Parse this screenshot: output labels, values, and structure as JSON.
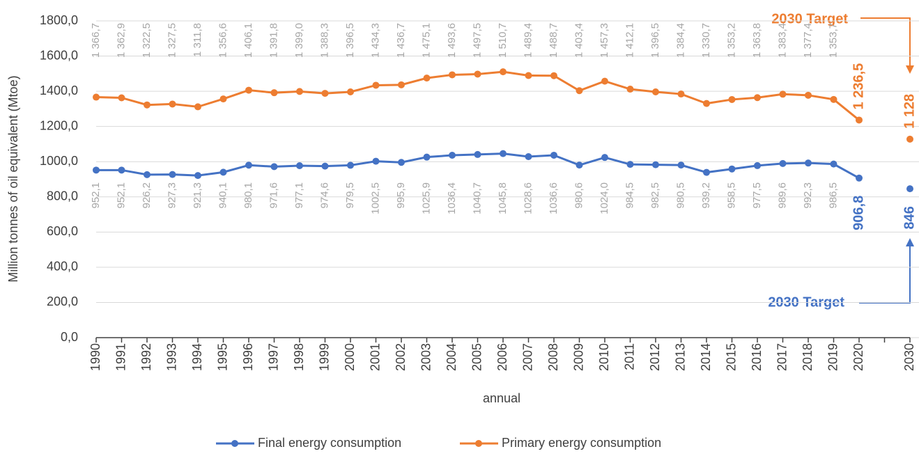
{
  "chart_data": {
    "type": "line",
    "y_label": "Million tonnes of oil equivalent (Mtoe)",
    "x_label": "annual",
    "categories": [
      "1990",
      "1991",
      "1992",
      "1993",
      "1994",
      "1995",
      "1996",
      "1997",
      "1998",
      "1999",
      "2000",
      "2001",
      "2002",
      "2003",
      "2004",
      "2005",
      "2006",
      "2007",
      "2008",
      "2009",
      "2010",
      "2011",
      "2012",
      "2013",
      "2014",
      "2015",
      "2016",
      "2017",
      "2018",
      "2019",
      "2020",
      null,
      "2030"
    ],
    "series": [
      {
        "name": "Final energy consumption",
        "color": "#4472c4",
        "values": [
          952.1,
          952.1,
          926.2,
          927.3,
          921.3,
          940.1,
          980.1,
          971.6,
          977.1,
          974.6,
          979.5,
          1002.5,
          995.9,
          1025.9,
          1036.4,
          1040.7,
          1045.8,
          1028.6,
          1036.6,
          980.6,
          1024.0,
          984.5,
          982.5,
          980.5,
          939.2,
          958.5,
          977.5,
          989.6,
          992.3,
          986.5,
          906.8,
          null,
          846
        ],
        "value_labels": [
          "952,1",
          "952,1",
          "926,2",
          "927,3",
          "921,3",
          "940,1",
          "980,1",
          "971,6",
          "977,1",
          "974,6",
          "979,5",
          "1002,5",
          "995,9",
          "1025,9",
          "1036,4",
          "1040,7",
          "1045,8",
          "1028,6",
          "1036,6",
          "980,6",
          "1024,0",
          "984,5",
          "982,5",
          "980,5",
          "939,2",
          "958,5",
          "977,5",
          "989,6",
          "992,3",
          "986,5",
          "906,8",
          null,
          "846"
        ]
      },
      {
        "name": "Primary energy consumption",
        "color": "#ed7d31",
        "values": [
          1366.7,
          1362.9,
          1322.5,
          1327.5,
          1311.8,
          1356.6,
          1406.1,
          1391.8,
          1399.0,
          1388.3,
          1396.5,
          1434.3,
          1436.7,
          1475.1,
          1493.6,
          1497.5,
          1510.7,
          1489.4,
          1488.7,
          1403.4,
          1457.3,
          1412.1,
          1396.5,
          1384.4,
          1330.7,
          1353.2,
          1363.8,
          1383.4,
          1377.4,
          1353.7,
          1236.5,
          null,
          1128
        ],
        "value_labels": [
          "1 366,7",
          "1 362,9",
          "1 322,5",
          "1 327,5",
          "1 311,8",
          "1 356,6",
          "1 406,1",
          "1 391,8",
          "1 399,0",
          "1 388,3",
          "1 396,5",
          "1 434,3",
          "1 436,7",
          "1 475,1",
          "1 493,6",
          "1 497,5",
          "1 510,7",
          "1 489,4",
          "1 488,7",
          "1 403,4",
          "1 457,3",
          "1 412,1",
          "1 396,5",
          "1 384,4",
          "1 330,7",
          "1 353,2",
          "1 363,8",
          "1 383,4",
          "1 377,4",
          "1 353,7",
          "1 236,5",
          null,
          "1 128"
        ]
      }
    ],
    "annotations": [
      "2030 Target",
      "2030 Target"
    ],
    "ylim": [
      0,
      1800
    ],
    "yticks": [
      {
        "value": 0,
        "label": "0,0"
      },
      {
        "value": 200,
        "label": "200,0"
      },
      {
        "value": 400,
        "label": "400,0"
      },
      {
        "value": 600,
        "label": "600,0"
      },
      {
        "value": 800,
        "label": "800,0"
      },
      {
        "value": 1000,
        "label": "1000,0"
      },
      {
        "value": 1200,
        "label": "1200,0"
      },
      {
        "value": 1400,
        "label": "1400,0"
      },
      {
        "value": 1600,
        "label": "1600,0"
      },
      {
        "value": 1800,
        "label": "1800,0"
      }
    ],
    "grid": true
  }
}
